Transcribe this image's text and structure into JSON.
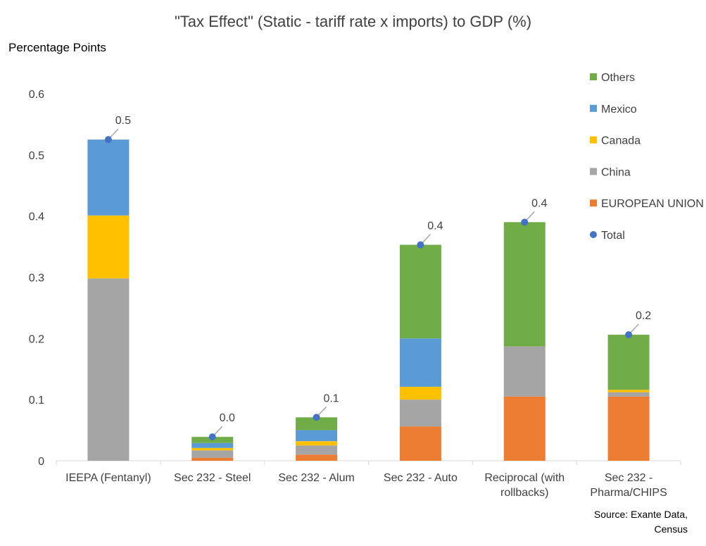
{
  "chart_data": {
    "type": "bar",
    "stacked": true,
    "title": "\"Tax Effect\" (Static - tariff rate x imports) to GDP (%)",
    "ylabel": "Percentage Points",
    "ylim": [
      0,
      0.6
    ],
    "yticks": [
      "0",
      "0.1",
      "0.2",
      "0.3",
      "0.4",
      "0.5",
      "0.6"
    ],
    "ytick_values": [
      0,
      0.1,
      0.2,
      0.3,
      0.4,
      0.5,
      0.6
    ],
    "categories": [
      [
        "IEEPA (Fentanyl)"
      ],
      [
        "Sec 232 - Steel"
      ],
      [
        "Sec 232 - Alum"
      ],
      [
        "Sec 232 - Auto"
      ],
      [
        "Reciprocal (with",
        "rollbacks)"
      ],
      [
        "Sec 232 -",
        "Pharma/CHIPS"
      ]
    ],
    "series": [
      {
        "name": "EUROPEAN UNION",
        "color": "#ED7D31",
        "values": [
          0,
          0.005,
          0.01,
          0.056,
          0.105,
          0.105
        ]
      },
      {
        "name": "China",
        "color": "#A5A5A5",
        "values": [
          0.298,
          0.012,
          0.015,
          0.044,
          0.082,
          0.007
        ]
      },
      {
        "name": "Canada",
        "color": "#FFC000",
        "values": [
          0.103,
          0.004,
          0.007,
          0.021,
          0,
          0.004
        ]
      },
      {
        "name": "Mexico",
        "color": "#5B9BD5",
        "values": [
          0.124,
          0.008,
          0.018,
          0.079,
          0,
          0
        ]
      },
      {
        "name": "Others",
        "color": "#70AD47",
        "values": [
          0,
          0.01,
          0.021,
          0.153,
          0.203,
          0.09
        ]
      }
    ],
    "total": {
      "name": "Total",
      "color": "#4472C4",
      "values": [
        0.525,
        0.039,
        0.071,
        0.353,
        0.39,
        0.206
      ],
      "labels": [
        "0.5",
        "0.0",
        "0.1",
        "0.4",
        "0.4",
        "0.2"
      ]
    },
    "legend_order": [
      "Others",
      "Mexico",
      "Canada",
      "China",
      "EUROPEAN UNION",
      "Total"
    ],
    "legend_position": "right",
    "grid": false
  },
  "source": [
    "Source:  Exante Data,",
    "Census"
  ]
}
